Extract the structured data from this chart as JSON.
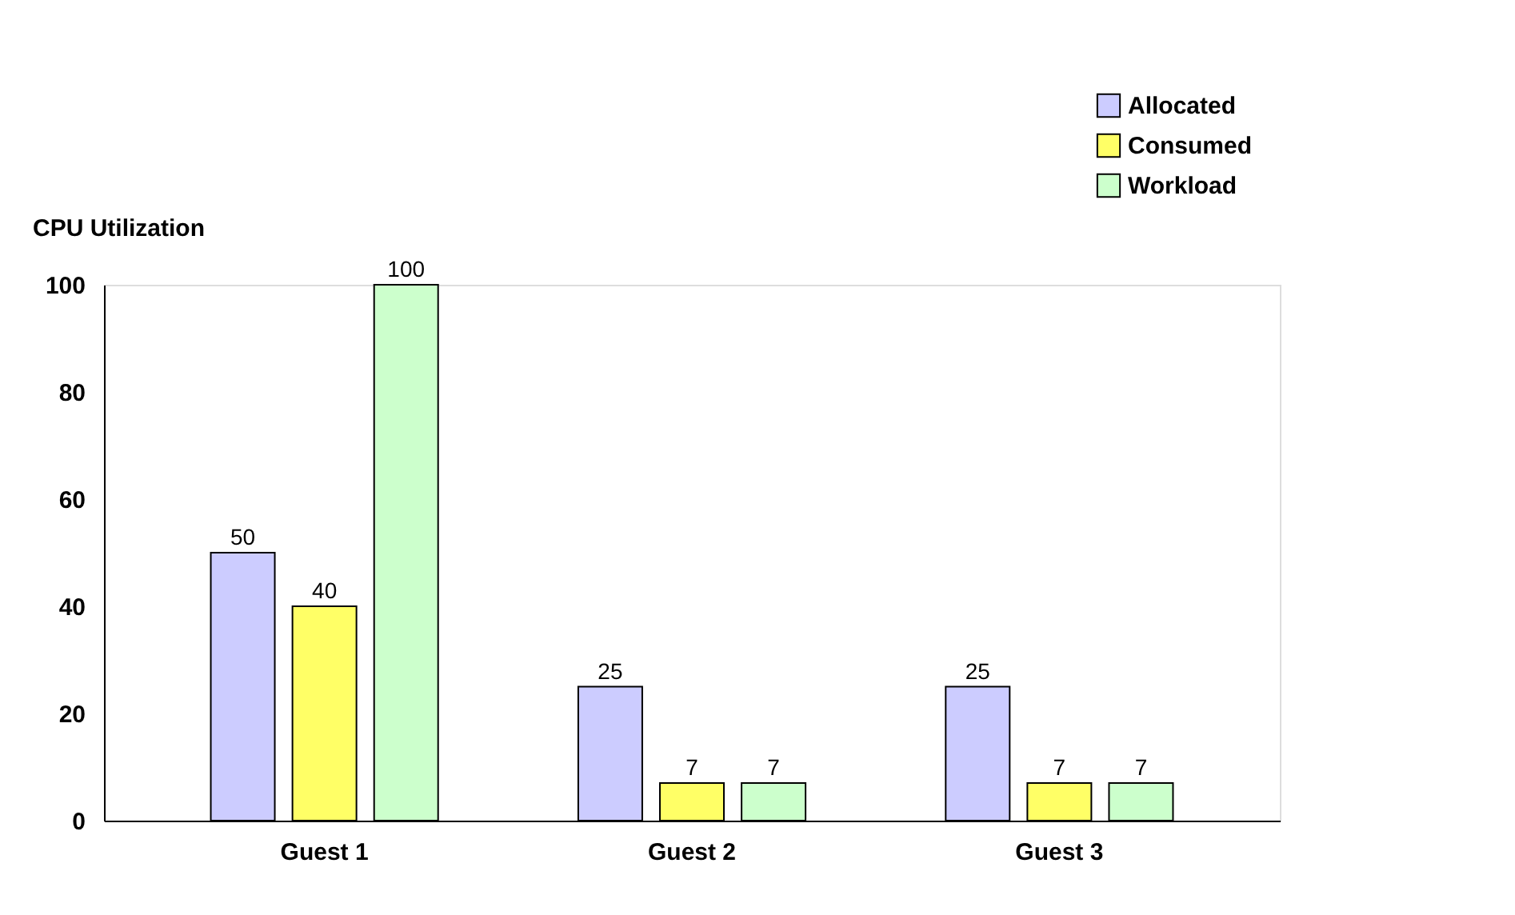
{
  "chart_data": {
    "type": "bar",
    "ylabel": "CPU Utilization",
    "categories": [
      "Guest 1",
      "Guest 2",
      "Guest 3"
    ],
    "series": [
      {
        "name": "Allocated",
        "color": "#ccccff",
        "values": [
          50,
          25,
          25
        ]
      },
      {
        "name": "Consumed",
        "color": "#ffff66",
        "values": [
          40,
          7,
          7
        ]
      },
      {
        "name": "Workload",
        "color": "#ccffcc",
        "values": [
          100,
          7,
          7
        ]
      }
    ],
    "ylim": [
      0,
      100
    ],
    "yticks": [
      0,
      20,
      40,
      60,
      80,
      100
    ],
    "grid": false,
    "legend": "top right",
    "data_labels": true
  }
}
